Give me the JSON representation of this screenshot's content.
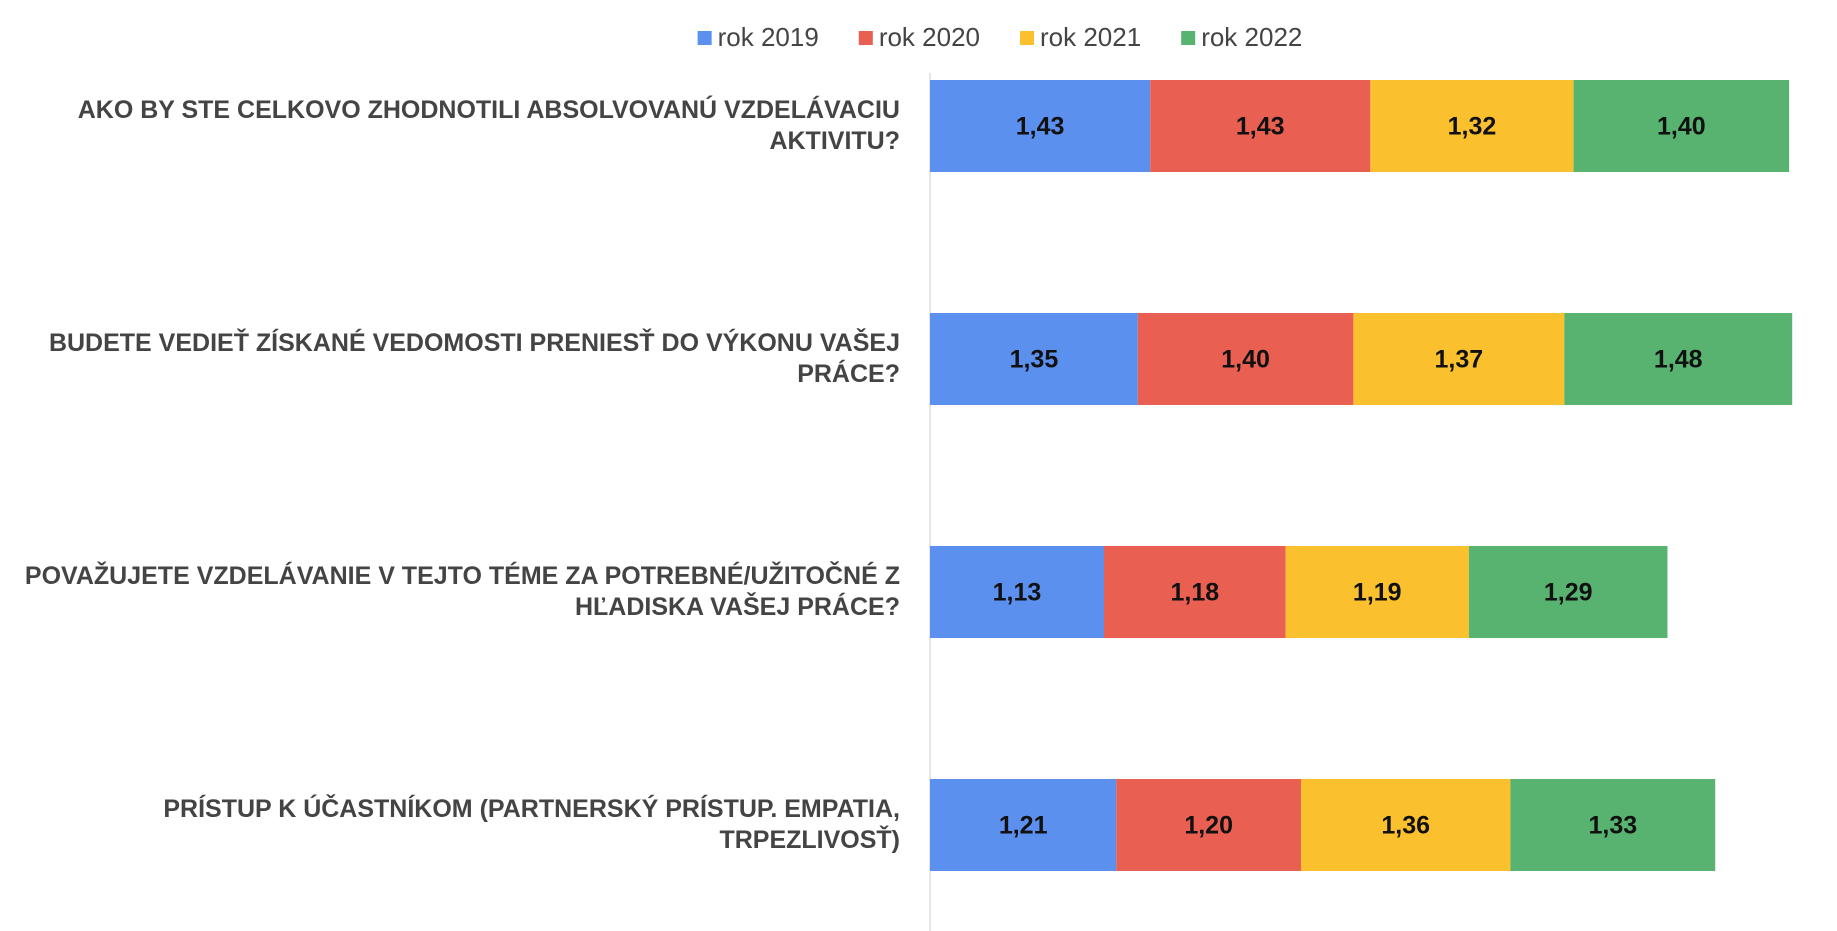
{
  "chart_data": {
    "type": "stacked_bar_horizontal",
    "categories": [
      "AKO BY STE CELKOVO ZHODNOTILI ABSOLVOVANÚ VZDELÁVACIU AKTIVITU?",
      "BUDETE VEDIEŤ ZÍSKANÉ VEDOMOSTI PRENIESŤ DO VÝKONU VAŠEJ PRÁCE?",
      "POVAŽUJETE VZDELÁVANIE V TEJTO TÉME ZA POTREBNÉ/UŽITOČNÉ Z HĽADISKA VAŠEJ PRÁCE?",
      "PRÍSTUP K ÚČASTNÍKOM (PARTNERSKÝ PRÍSTUP. EMPATIA, TRPEZLIVOSŤ)"
    ],
    "series": [
      {
        "name": "rok 2019",
        "color": "#5b90ee",
        "values": [
          1.43,
          1.35,
          1.13,
          1.21
        ],
        "value_labels": [
          "1,43",
          "1,35",
          "1,13",
          "1,21"
        ]
      },
      {
        "name": "rok 2020",
        "color": "#e95f52",
        "values": [
          1.43,
          1.4,
          1.18,
          1.2
        ],
        "value_labels": [
          "1,43",
          "1,40",
          "1,18",
          "1,20"
        ]
      },
      {
        "name": "rok 2021",
        "color": "#fbc02d",
        "values": [
          1.32,
          1.37,
          1.19,
          1.36
        ],
        "value_labels": [
          "1,32",
          "1,37",
          "1,19",
          "1,36"
        ]
      },
      {
        "name": "rok 2022",
        "color": "#57b36f",
        "values": [
          1.4,
          1.48,
          1.29,
          1.33
        ],
        "value_labels": [
          "1,40",
          "1,48",
          "1,29",
          "1,33"
        ]
      }
    ],
    "xlim": [
      0,
      5.8
    ],
    "legend": "top"
  }
}
